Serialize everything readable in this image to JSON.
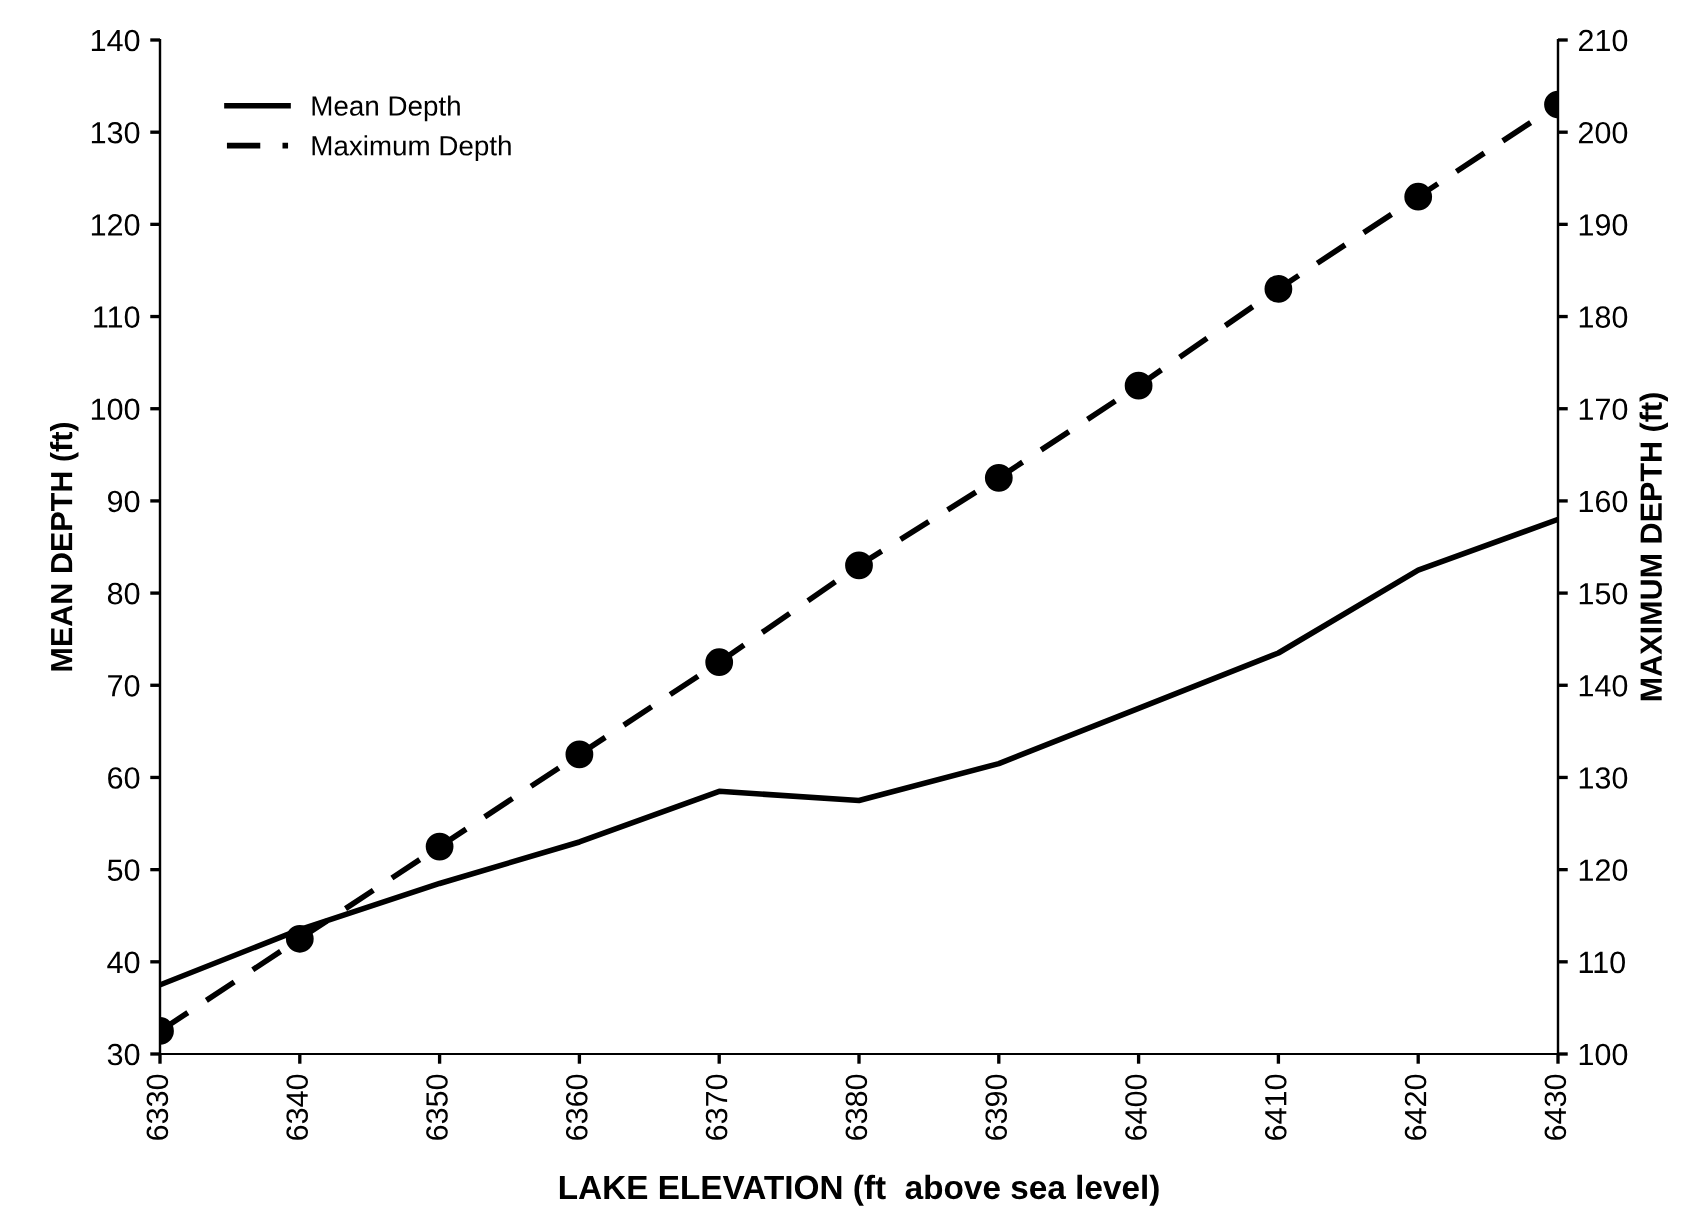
{
  "chart_data": {
    "type": "line",
    "xlabel": "LAKE ELEVATION (ft  above sea level)",
    "ylabel": "MEAN DEPTH (ft)",
    "y2label": "MAXIMUM DEPTH (ft)",
    "x": [
      6330,
      6340,
      6350,
      6360,
      6370,
      6380,
      6390,
      6400,
      6410,
      6420,
      6430
    ],
    "series": [
      {
        "name": "Mean Depth",
        "color": "#000000",
        "line_style": "solid",
        "marker": "none",
        "values": [
          37.5,
          43.5,
          48.5,
          53,
          58.5,
          57.5,
          61.5,
          67.5,
          73.5,
          82.5,
          88
        ]
      },
      {
        "name": "Maximum Depth",
        "color": "#000000",
        "line_style": "dashed",
        "marker": "circle",
        "axis": "y2",
        "values": [
          102.5,
          112.5,
          122.5,
          132.5,
          142.5,
          153,
          162.5,
          172.5,
          183,
          193,
          203
        ]
      }
    ],
    "xlim": [
      6330,
      6430
    ],
    "xticks": [
      6330,
      6340,
      6350,
      6360,
      6370,
      6380,
      6390,
      6400,
      6410,
      6420,
      6430
    ],
    "ylim": [
      30,
      140
    ],
    "yticks": [
      30,
      40,
      50,
      60,
      70,
      80,
      90,
      100,
      110,
      120,
      130,
      140
    ],
    "y2lim": [
      100,
      210
    ],
    "y2ticks": [
      100,
      110,
      120,
      130,
      140,
      150,
      160,
      170,
      180,
      190,
      200,
      210
    ],
    "grid": false,
    "legend": "top left"
  }
}
